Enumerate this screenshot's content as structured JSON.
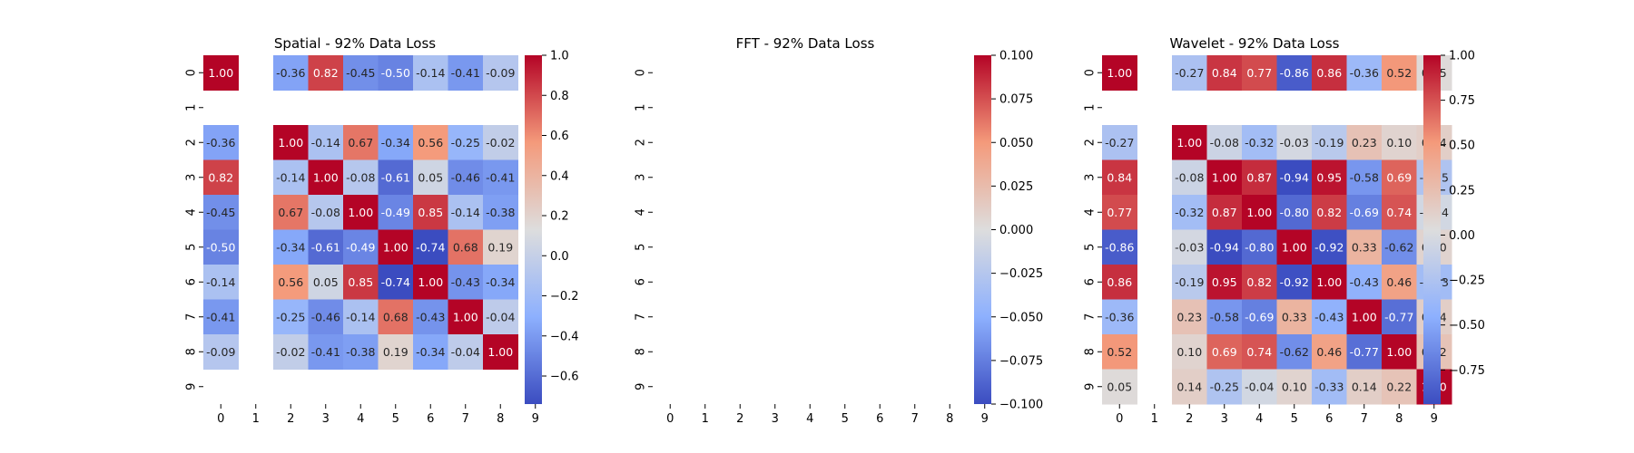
{
  "chart_data": [
    {
      "type": "heatmap",
      "title": "Spatial - 92% Data Loss",
      "x_ticks": [
        "0",
        "1",
        "2",
        "3",
        "4",
        "5",
        "6",
        "7",
        "8",
        "9"
      ],
      "y_ticks": [
        "0",
        "1",
        "2",
        "3",
        "4",
        "5",
        "6",
        "7",
        "8",
        "9"
      ],
      "values": [
        [
          1.0,
          null,
          -0.36,
          0.82,
          -0.45,
          -0.5,
          -0.14,
          -0.41,
          -0.09,
          null
        ],
        [
          null,
          null,
          null,
          null,
          null,
          null,
          null,
          null,
          null,
          null
        ],
        [
          -0.36,
          null,
          1.0,
          -0.14,
          0.67,
          -0.34,
          0.56,
          -0.25,
          -0.02,
          null
        ],
        [
          0.82,
          null,
          -0.14,
          1.0,
          -0.08,
          -0.61,
          0.05,
          -0.46,
          -0.41,
          null
        ],
        [
          -0.45,
          null,
          0.67,
          -0.08,
          1.0,
          -0.49,
          0.85,
          -0.14,
          -0.38,
          null
        ],
        [
          -0.5,
          null,
          -0.34,
          -0.61,
          -0.49,
          1.0,
          -0.74,
          0.68,
          0.19,
          null
        ],
        [
          -0.14,
          null,
          0.56,
          0.05,
          0.85,
          -0.74,
          1.0,
          -0.43,
          -0.34,
          null
        ],
        [
          -0.41,
          null,
          -0.25,
          -0.46,
          -0.14,
          0.68,
          -0.43,
          1.0,
          -0.04,
          null
        ],
        [
          -0.09,
          null,
          -0.02,
          -0.41,
          -0.38,
          0.19,
          -0.34,
          -0.04,
          1.0,
          null
        ],
        [
          null,
          null,
          null,
          null,
          null,
          null,
          null,
          null,
          null,
          null
        ]
      ],
      "vmin": -0.74,
      "vmax": 1.0,
      "colorbar_ticks": [
        "1.0",
        "0.8",
        "0.6",
        "0.4",
        "0.2",
        "0.0",
        "−0.2",
        "−0.4",
        "−0.6"
      ],
      "colorbar_tick_values": [
        1.0,
        0.8,
        0.6,
        0.4,
        0.2,
        0.0,
        -0.2,
        -0.4,
        -0.6
      ],
      "colormap": "coolwarm",
      "annotations": true
    },
    {
      "type": "heatmap",
      "title": "FFT - 92% Data Loss",
      "x_ticks": [
        "0",
        "1",
        "2",
        "3",
        "4",
        "5",
        "6",
        "7",
        "8",
        "9"
      ],
      "y_ticks": [
        "0",
        "1",
        "2",
        "3",
        "4",
        "5",
        "6",
        "7",
        "8",
        "9"
      ],
      "values": [
        [
          null,
          null,
          null,
          null,
          null,
          null,
          null,
          null,
          null,
          null
        ],
        [
          null,
          null,
          null,
          null,
          null,
          null,
          null,
          null,
          null,
          null
        ],
        [
          null,
          null,
          null,
          null,
          null,
          null,
          null,
          null,
          null,
          null
        ],
        [
          null,
          null,
          null,
          null,
          null,
          null,
          null,
          null,
          null,
          null
        ],
        [
          null,
          null,
          null,
          null,
          null,
          null,
          null,
          null,
          null,
          null
        ],
        [
          null,
          null,
          null,
          null,
          null,
          null,
          null,
          null,
          null,
          null
        ],
        [
          null,
          null,
          null,
          null,
          null,
          null,
          null,
          null,
          null,
          null
        ],
        [
          null,
          null,
          null,
          null,
          null,
          null,
          null,
          null,
          null,
          null
        ],
        [
          null,
          null,
          null,
          null,
          null,
          null,
          null,
          null,
          null,
          null
        ],
        [
          null,
          null,
          null,
          null,
          null,
          null,
          null,
          null,
          null,
          null
        ]
      ],
      "vmin": -0.1,
      "vmax": 0.1,
      "colorbar_ticks": [
        "0.100",
        "0.075",
        "0.050",
        "0.025",
        "0.000",
        "−0.025",
        "−0.050",
        "−0.075",
        "−0.100"
      ],
      "colorbar_tick_values": [
        0.1,
        0.075,
        0.05,
        0.025,
        0.0,
        -0.025,
        -0.05,
        -0.075,
        -0.1
      ],
      "colormap": "coolwarm",
      "annotations": true
    },
    {
      "type": "heatmap",
      "title": "Wavelet - 92% Data Loss",
      "x_ticks": [
        "0",
        "1",
        "2",
        "3",
        "4",
        "5",
        "6",
        "7",
        "8",
        "9"
      ],
      "y_ticks": [
        "0",
        "1",
        "2",
        "3",
        "4",
        "5",
        "6",
        "7",
        "8",
        "9"
      ],
      "values": [
        [
          1.0,
          null,
          -0.27,
          0.84,
          0.77,
          -0.86,
          0.86,
          -0.36,
          0.52,
          0.05
        ],
        [
          null,
          null,
          null,
          null,
          null,
          null,
          null,
          null,
          null,
          null
        ],
        [
          -0.27,
          null,
          1.0,
          -0.08,
          -0.32,
          -0.03,
          -0.19,
          0.23,
          0.1,
          0.14
        ],
        [
          0.84,
          null,
          -0.08,
          1.0,
          0.87,
          -0.94,
          0.95,
          -0.58,
          0.69,
          -0.25
        ],
        [
          0.77,
          null,
          -0.32,
          0.87,
          1.0,
          -0.8,
          0.82,
          -0.69,
          0.74,
          -0.04
        ],
        [
          -0.86,
          null,
          -0.03,
          -0.94,
          -0.8,
          1.0,
          -0.92,
          0.33,
          -0.62,
          0.1
        ],
        [
          0.86,
          null,
          -0.19,
          0.95,
          0.82,
          -0.92,
          1.0,
          -0.43,
          0.46,
          -0.33
        ],
        [
          -0.36,
          null,
          0.23,
          -0.58,
          -0.69,
          0.33,
          -0.43,
          1.0,
          -0.77,
          0.14
        ],
        [
          0.52,
          null,
          0.1,
          0.69,
          0.74,
          -0.62,
          0.46,
          -0.77,
          1.0,
          0.22
        ],
        [
          0.05,
          null,
          0.14,
          -0.25,
          -0.04,
          0.1,
          -0.33,
          0.14,
          0.22,
          1.0
        ]
      ],
      "vmin": -0.94,
      "vmax": 1.0,
      "colorbar_ticks": [
        "1.00",
        "0.75",
        "0.50",
        "0.25",
        "0.00",
        "−0.25",
        "−0.50",
        "−0.75"
      ],
      "colorbar_tick_values": [
        1.0,
        0.75,
        0.5,
        0.25,
        0.0,
        -0.25,
        -0.5,
        -0.75
      ],
      "colormap": "coolwarm",
      "annotations": true
    }
  ]
}
